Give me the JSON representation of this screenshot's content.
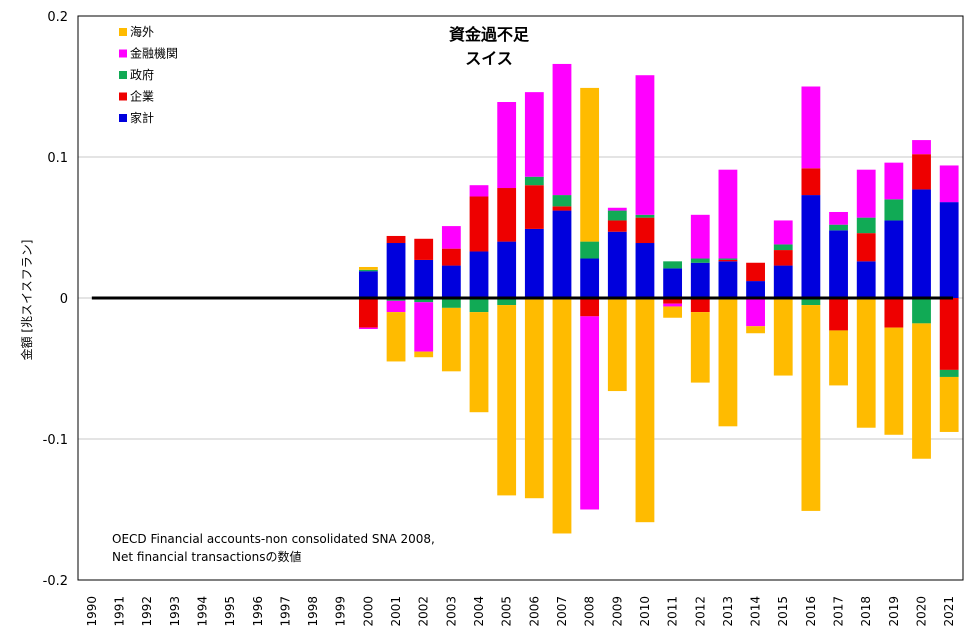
{
  "chart_data": {
    "type": "bar",
    "stacked": true,
    "title": [
      "資金過不足",
      "スイス"
    ],
    "ylabel": "金額 [兆スイスフラン]",
    "ylim": [
      -0.2,
      0.2
    ],
    "yticks": [
      0.2,
      0.1,
      0,
      -0.1,
      -0.2
    ],
    "ytick_labels": [
      "0.2",
      "0.1",
      "0",
      "-0.1",
      "-0.2"
    ],
    "legend_position": "top-left",
    "categories": [
      "1990",
      "1991",
      "1992",
      "1993",
      "1994",
      "1995",
      "1996",
      "1997",
      "1998",
      "1999",
      "2000",
      "2001",
      "2002",
      "2003",
      "2004",
      "2005",
      "2006",
      "2007",
      "2008",
      "2009",
      "2010",
      "2011",
      "2012",
      "2013",
      "2014",
      "2015",
      "2016",
      "2017",
      "2018",
      "2019",
      "2020",
      "2021"
    ],
    "stack_order": [
      "家計",
      "企業",
      "政府",
      "金融機関",
      "海外"
    ],
    "legend_order": [
      "海外",
      "金融機関",
      "政府",
      "企業",
      "家計"
    ],
    "series": [
      {
        "name": "家計",
        "color": "#0000dd",
        "values": [
          null,
          null,
          null,
          null,
          null,
          null,
          null,
          null,
          null,
          null,
          0.019,
          0.039,
          0.027,
          0.023,
          0.033,
          0.04,
          0.049,
          0.062,
          0.028,
          0.047,
          0.039,
          0.021,
          0.025,
          0.026,
          0.012,
          0.023,
          0.073,
          0.048,
          0.026,
          0.055,
          0.077,
          0.068
        ]
      },
      {
        "name": "企業",
        "color": "#ee0000",
        "values": [
          null,
          null,
          null,
          null,
          null,
          null,
          null,
          null,
          null,
          null,
          -0.021,
          0.005,
          0.015,
          0.012,
          0.039,
          0.038,
          0.031,
          0.003,
          -0.013,
          0.008,
          0.018,
          -0.004,
          -0.01,
          0.001,
          0.013,
          0.011,
          0.019,
          -0.023,
          0.02,
          -0.021,
          0.025,
          -0.051
        ]
      },
      {
        "name": "政府",
        "color": "#11aa55",
        "values": [
          null,
          null,
          null,
          null,
          null,
          null,
          null,
          null,
          null,
          null,
          0.001,
          -0.002,
          -0.003,
          -0.007,
          -0.01,
          -0.005,
          0.006,
          0.008,
          0.012,
          0.007,
          0.002,
          0.005,
          0.003,
          0.001,
          0.0,
          0.004,
          -0.005,
          0.004,
          0.011,
          0.015,
          -0.018,
          -0.005
        ]
      },
      {
        "name": "金融機関",
        "color": "#ff00ff",
        "values": [
          null,
          null,
          null,
          null,
          null,
          null,
          null,
          null,
          null,
          null,
          -0.001,
          -0.008,
          -0.035,
          0.016,
          0.008,
          0.061,
          0.06,
          0.093,
          -0.137,
          0.002,
          0.099,
          -0.002,
          0.031,
          0.063,
          -0.02,
          0.017,
          0.058,
          0.009,
          0.034,
          0.026,
          0.01,
          0.026
        ]
      },
      {
        "name": "海外",
        "color": "#ffbb00",
        "values": [
          null,
          null,
          null,
          null,
          null,
          null,
          null,
          null,
          null,
          null,
          0.002,
          -0.035,
          -0.004,
          -0.045,
          -0.071,
          -0.135,
          -0.142,
          -0.167,
          0.109,
          -0.066,
          -0.159,
          -0.008,
          -0.05,
          -0.091,
          -0.005,
          -0.055,
          -0.146,
          -0.039,
          -0.092,
          -0.076,
          -0.096,
          -0.039
        ]
      }
    ],
    "annotation": [
      "OECD Financial accounts-non consolidated SNA 2008,",
      "Net financial transactionsの数値"
    ]
  }
}
